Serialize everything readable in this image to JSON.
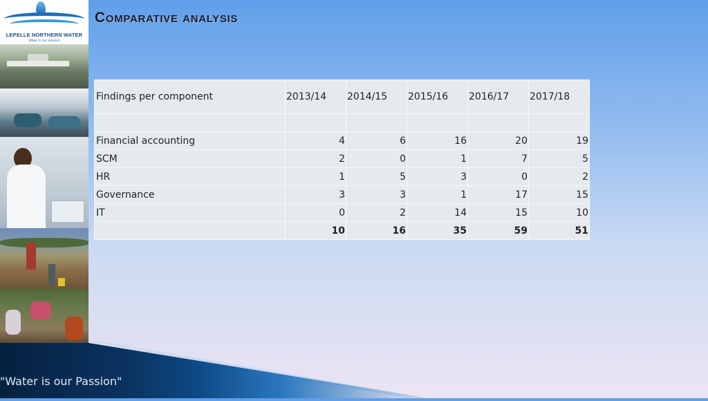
{
  "logo": {
    "name": "LEPELLE NORTHERN WATER",
    "slogan": "Water is our passion"
  },
  "slide": {
    "title": "Comparative analysis",
    "tagline": "\"Water is our Passion\""
  },
  "table": {
    "header": {
      "label": "Findings per component",
      "years": [
        "2013/14",
        "2014/15",
        "2015/16",
        "2016/17",
        "2017/18"
      ]
    },
    "rows": [
      {
        "label": "Financial accounting",
        "values": [
          "4",
          "6",
          "16",
          "20",
          "19"
        ]
      },
      {
        "label": "SCM",
        "values": [
          "2",
          "0",
          "1",
          "7",
          "5"
        ]
      },
      {
        "label": "HR",
        "values": [
          "1",
          "5",
          "3",
          "0",
          "2"
        ]
      },
      {
        "label": "Governance",
        "values": [
          "3",
          "3",
          "1",
          "17",
          "15"
        ]
      },
      {
        "label": "IT",
        "values": [
          "0",
          "2",
          "14",
          "15",
          "10"
        ]
      }
    ],
    "totals": [
      "10",
      "16",
      "35",
      "59",
      "51"
    ]
  }
}
